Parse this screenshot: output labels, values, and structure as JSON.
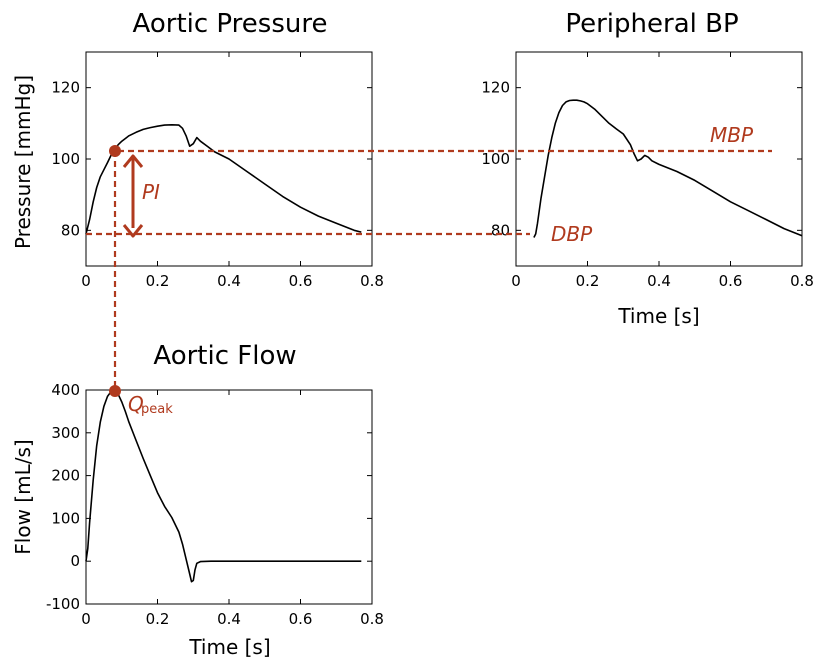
{
  "colors": {
    "accent": "#b03a1e",
    "curve": "#000000"
  },
  "chart_data": [
    {
      "id": "aortic_pressure",
      "type": "line",
      "title": "Aortic Pressure",
      "xlabel": "",
      "ylabel": "Pressure [mmHg]",
      "xlim": [
        0,
        0.8
      ],
      "ylim": [
        70,
        130
      ],
      "xticks": [
        0,
        0.2,
        0.4,
        0.6,
        0.8
      ],
      "xtick_labels": [
        "0",
        "0.2",
        "0.4",
        "0.6",
        "0.8"
      ],
      "yticks": [
        80,
        100,
        120
      ],
      "ytick_labels": [
        "80",
        "100",
        "120"
      ],
      "series": [
        {
          "x": [
            0,
            0.01,
            0.02,
            0.03,
            0.04,
            0.05,
            0.06,
            0.07,
            0.08,
            0.09,
            0.1,
            0.12,
            0.14,
            0.16,
            0.18,
            0.2,
            0.22,
            0.24,
            0.26,
            0.27,
            0.28,
            0.29,
            0.3,
            0.31,
            0.32,
            0.34,
            0.36,
            0.4,
            0.45,
            0.5,
            0.55,
            0.6,
            0.65,
            0.7,
            0.75,
            0.77
          ],
          "y": [
            79,
            83,
            88,
            92,
            95,
            97,
            99,
            101,
            102.6,
            104,
            105,
            106.5,
            107.5,
            108.3,
            108.8,
            109.2,
            109.5,
            109.6,
            109.5,
            108.6,
            106.5,
            103.6,
            104.3,
            106,
            105,
            103.5,
            102,
            100,
            96.5,
            93,
            89.5,
            86.5,
            84,
            82,
            80,
            79.5
          ]
        }
      ],
      "annotations": [
        "PI"
      ]
    },
    {
      "id": "peripheral_bp",
      "type": "line",
      "title": "Peripheral BP",
      "xlabel": "Time [s]",
      "ylabel": "",
      "xlim": [
        0,
        0.8
      ],
      "ylim": [
        70,
        130
      ],
      "xticks": [
        0,
        0.2,
        0.4,
        0.6,
        0.8
      ],
      "xtick_labels": [
        "0",
        "0.2",
        "0.4",
        "0.6",
        "0.8"
      ],
      "yticks": [
        80,
        100,
        120
      ],
      "ytick_labels": [
        "80",
        "100",
        "120"
      ],
      "series": [
        {
          "x": [
            0.05,
            0.055,
            0.06,
            0.07,
            0.08,
            0.09,
            0.1,
            0.11,
            0.12,
            0.13,
            0.14,
            0.15,
            0.16,
            0.17,
            0.18,
            0.19,
            0.2,
            0.22,
            0.24,
            0.26,
            0.28,
            0.3,
            0.32,
            0.33,
            0.34,
            0.35,
            0.36,
            0.37,
            0.38,
            0.4,
            0.45,
            0.5,
            0.55,
            0.6,
            0.65,
            0.7,
            0.75,
            0.8
          ],
          "y": [
            78,
            79,
            82,
            89,
            95,
            101,
            106,
            110,
            113,
            115,
            116,
            116.4,
            116.5,
            116.5,
            116.3,
            116,
            115.5,
            114,
            112,
            110,
            108.5,
            107,
            104,
            101.5,
            99.5,
            100,
            101,
            100.5,
            99.5,
            98.5,
            96.5,
            94,
            91,
            88,
            85.5,
            83,
            80.5,
            78.5
          ]
        }
      ],
      "annotations": [
        "MBP",
        "DBP"
      ]
    },
    {
      "id": "aortic_flow",
      "type": "line",
      "title": "Aortic Flow",
      "xlabel": "Time [s]",
      "ylabel": "Flow [mL/s]",
      "xlim": [
        0,
        0.8
      ],
      "ylim": [
        -100,
        400
      ],
      "xticks": [
        0,
        0.2,
        0.4,
        0.6,
        0.8
      ],
      "xtick_labels": [
        "0",
        "0.2",
        "0.4",
        "0.6",
        "0.8"
      ],
      "yticks": [
        -100,
        0,
        100,
        200,
        300,
        400
      ],
      "ytick_labels": [
        "-100",
        "0",
        "100",
        "200",
        "300",
        "400"
      ],
      "series": [
        {
          "x": [
            0,
            0.005,
            0.01,
            0.02,
            0.03,
            0.04,
            0.05,
            0.06,
            0.07,
            0.08,
            0.09,
            0.1,
            0.11,
            0.12,
            0.14,
            0.16,
            0.18,
            0.2,
            0.22,
            0.24,
            0.26,
            0.27,
            0.28,
            0.29,
            0.295,
            0.3,
            0.305,
            0.31,
            0.32,
            0.35,
            0.4,
            0.5,
            0.6,
            0.7,
            0.77
          ],
          "y": [
            0,
            30,
            90,
            190,
            270,
            325,
            362,
            385,
            396,
            397,
            390,
            372,
            350,
            325,
            282,
            240,
            200,
            160,
            128,
            102,
            68,
            40,
            5,
            -30,
            -48,
            -45,
            -20,
            -5,
            -1,
            0,
            0,
            0,
            0,
            0,
            0
          ]
        }
      ],
      "annotations": [
        "Q",
        "peak"
      ]
    }
  ]
}
